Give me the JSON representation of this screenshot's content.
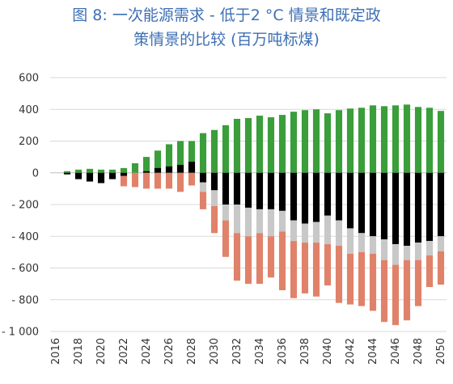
{
  "chart_data": {
    "type": "bar",
    "stacked": true,
    "title": "图 8: 一次能源需求 - 低于2 °C 情景和既定政策情景的比较 (百万吨标煤)",
    "title_lines": [
      "图 8: 一次能源需求 - 低于2 °C 情景和既定政",
      "策情景的比较 (百万吨标煤)"
    ],
    "xlabel": "",
    "ylabel": "",
    "ylim": [
      -1000,
      600
    ],
    "y_ticks": [
      600,
      400,
      200,
      0,
      -200,
      -400,
      -600,
      -800,
      -1000
    ],
    "y_tick_labels": [
      "600",
      "400",
      "200",
      "0",
      "- 200",
      "- 400",
      "- 600",
      "- 800",
      "- 1 000"
    ],
    "x_tick_labels": [
      "2016",
      "2018",
      "2020",
      "2022",
      "2024",
      "2026",
      "2028",
      "2030",
      "2032",
      "2034",
      "2036",
      "2038",
      "2040",
      "2042",
      "2044",
      "2046",
      "2048",
      "2050"
    ],
    "categories": [
      "2016",
      "2017",
      "2018",
      "2019",
      "2020",
      "2021",
      "2022",
      "2023",
      "2024",
      "2025",
      "2026",
      "2027",
      "2028",
      "2029",
      "2030",
      "2031",
      "2032",
      "2033",
      "2034",
      "2035",
      "2036",
      "2037",
      "2038",
      "2039",
      "2040",
      "2041",
      "2042",
      "2043",
      "2044",
      "2045",
      "2046",
      "2047",
      "2048",
      "2049",
      "2050"
    ],
    "grid": true,
    "legend": "none",
    "series": [
      {
        "color": "#3a9e3a",
        "values": [
          0,
          10,
          20,
          25,
          20,
          20,
          30,
          60,
          100,
          140,
          180,
          200,
          200,
          250,
          270,
          300,
          340,
          345,
          360,
          350,
          365,
          385,
          395,
          400,
          375,
          395,
          405,
          410,
          425,
          420,
          425,
          430,
          415,
          410,
          390
        ]
      },
      {
        "color": "#000000",
        "values": [
          0,
          -10,
          -40,
          -55,
          -65,
          -40,
          -20,
          0,
          10,
          30,
          40,
          50,
          70,
          -60,
          -110,
          -200,
          -200,
          -220,
          -230,
          -230,
          -240,
          -300,
          -320,
          -310,
          -270,
          -300,
          -350,
          -380,
          -400,
          -420,
          -450,
          -460,
          -440,
          -430,
          -400
        ]
      },
      {
        "color": "#c8c8c8",
        "values": [
          0,
          0,
          0,
          0,
          0,
          0,
          0,
          0,
          0,
          0,
          0,
          0,
          0,
          -60,
          -100,
          -100,
          -180,
          -180,
          -150,
          -170,
          -130,
          -130,
          -120,
          -130,
          -180,
          -160,
          -160,
          -120,
          -110,
          -130,
          -130,
          -90,
          -110,
          -90,
          -95
        ]
      },
      {
        "color": "#e0826a",
        "values": [
          0,
          0,
          0,
          0,
          0,
          0,
          -65,
          -90,
          -100,
          -100,
          -100,
          -120,
          -80,
          -110,
          -170,
          -230,
          -300,
          -300,
          -320,
          -260,
          -370,
          -360,
          -320,
          -340,
          -260,
          -360,
          -320,
          -340,
          -360,
          -390,
          -380,
          -380,
          -290,
          -200,
          -210
        ]
      }
    ],
    "positive_stack_offset_black": [
      0,
      10,
      20,
      25,
      20,
      20,
      30,
      60,
      100,
      140,
      180,
      200,
      200,
      250,
      270,
      300,
      340,
      345,
      360,
      350,
      365,
      385,
      395,
      400,
      375,
      395,
      405,
      410,
      425,
      420,
      425,
      430,
      415,
      410,
      390
    ]
  }
}
